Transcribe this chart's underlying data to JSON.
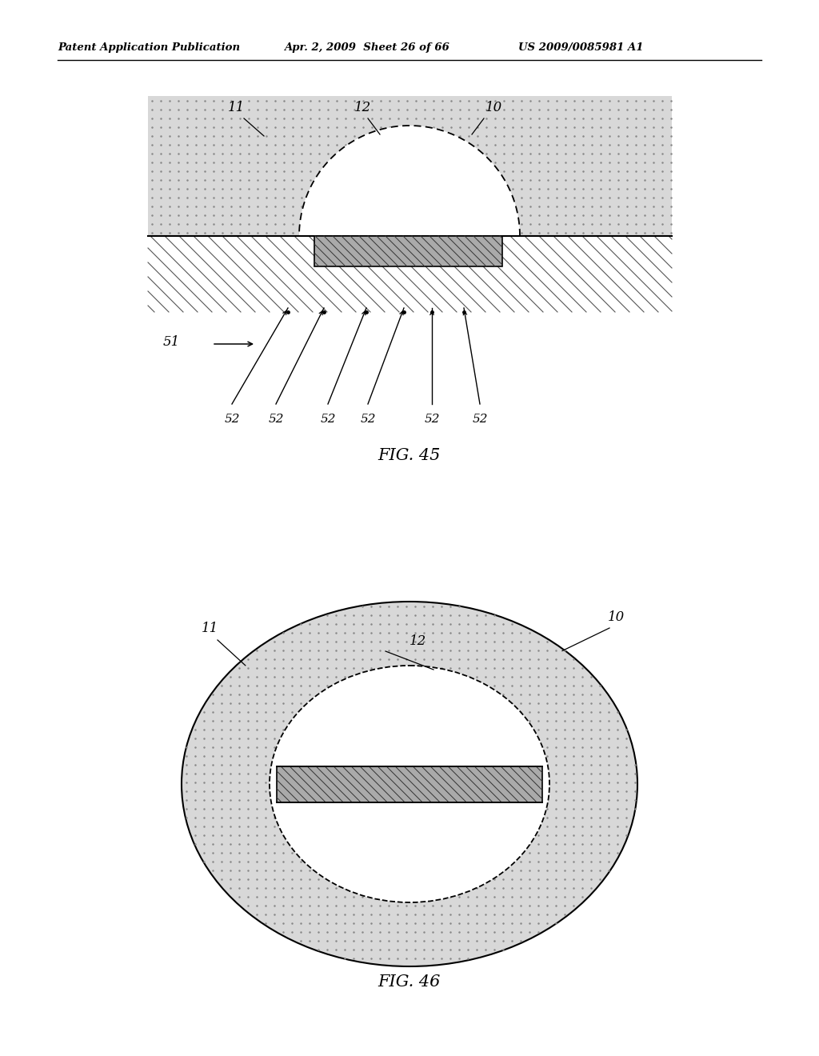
{
  "header_left": "Patent Application Publication",
  "header_mid": "Apr. 2, 2009  Sheet 26 of 66",
  "header_right": "US 2009/0085981 A1",
  "fig45_label": "FIG. 45",
  "fig46_label": "FIG. 46",
  "bg_color": "#ffffff",
  "dot_color": "#999999",
  "hatch_color": "#555555",
  "line_color": "#000000"
}
